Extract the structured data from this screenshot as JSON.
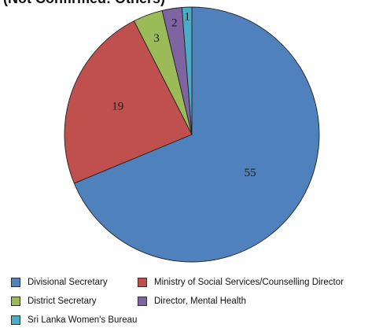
{
  "chart_data": {
    "type": "pie",
    "title": "(Not Confirmed: Others)",
    "slices": [
      {
        "label": "Divisional Secretary",
        "value": 55,
        "color": "#4f81bd"
      },
      {
        "label": "Ministry of Social Services/Counselling Director",
        "value": 19,
        "color": "#c0504d"
      },
      {
        "label": "District Secretary",
        "value": 3,
        "color": "#9bbb59"
      },
      {
        "label": "Director, Mental Health",
        "value": 2,
        "color": "#8064a2"
      },
      {
        "label": "Sri Lanka Women's Bureau",
        "value": 1,
        "color": "#4bacc6"
      }
    ],
    "start_angle_deg": 0,
    "direction": "clockwise",
    "legend_position": "bottom"
  }
}
